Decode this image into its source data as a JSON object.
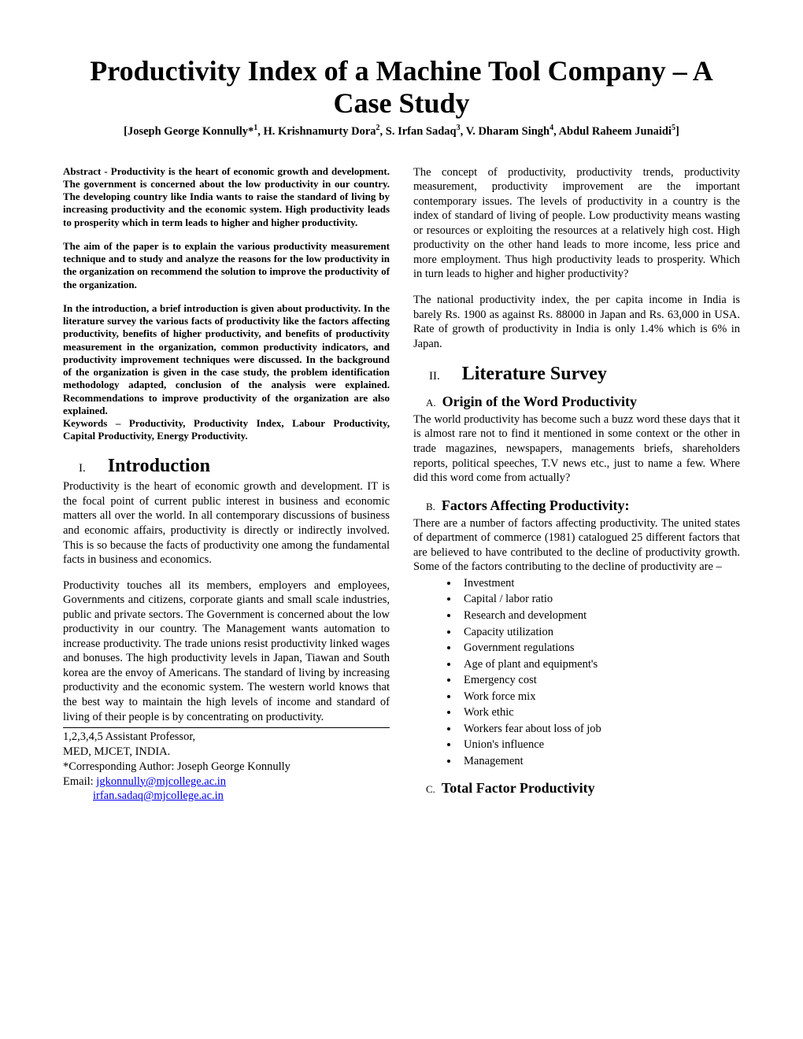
{
  "title": "Productivity Index of a Machine Tool Company – A Case Study",
  "authors_html": "[Joseph George Konnully*<sup>1</sup>, H. Krishnamurty Dora<sup>2</sup>, S. Irfan Sadaq<sup>3</sup>, V. Dharam Singh<sup>4</sup>, Abdul Raheem Junaidi<sup>5</sup>]",
  "abstract": {
    "p1": "Abstract - Productivity is the heart of economic growth and development. The government is concerned about the low productivity in our country. The developing country like India wants to raise the standard of living by increasing productivity and the economic system. High productivity leads to prosperity which in term leads to higher and higher productivity.",
    "p2": "The aim of the paper is to explain the various productivity measurement technique and to study and analyze the reasons for the low productivity in the organization on recommend the solution to improve the productivity of the organization.",
    "p3": "In the introduction, a brief introduction is given about productivity. In the literature survey the various facts of productivity like the factors affecting productivity, benefits of higher productivity, and benefits of productivity measurement in the organization, common productivity indicators, and productivity improvement techniques were discussed. In the background of the organization is given in the case study, the problem identification methodology adapted, conclusion of the analysis were explained. Recommendations to improve productivity of the organization are also explained.",
    "keywords": "Keywords – Productivity, Productivity Index, Labour Productivity, Capital Productivity, Energy Productivity."
  },
  "section1": {
    "num": "I.",
    "title": "Introduction",
    "p1": "Productivity is the heart of economic growth and development. IT is the focal point of current public interest in business and economic matters all over the world. In all contemporary discussions of business and economic affairs, productivity is directly or indirectly involved. This is so because the facts of productivity one among the fundamental facts in business and economics.",
    "p2": "Productivity touches all its members, employers and employees, Governments and citizens, corporate giants and small scale industries, public and private sectors. The Government is concerned about the low productivity in our country. The Management wants automation to increase productivity. The trade unions resist productivity linked wages and bonuses. The high productivity levels in Japan, Tiawan and South korea are the envoy of Americans. The standard of living by increasing productivity and the economic system. The western world knows that the best way to maintain the high levels of income and standard of living of their people is by concentrating on productivity."
  },
  "footnote": {
    "line1": "1,2,3,4,5 Assistant Professor,",
    "line2": "MED, MJCET, INDIA.",
    "line3": "*Corresponding Author: Joseph George Konnully",
    "email_label": "Email: ",
    "email1": "jgkonnully@mjcollege.ac.in",
    "email2": "irfan.sadaq@mjcollege.ac.in"
  },
  "col2": {
    "p1": "The concept of productivity, productivity trends, productivity measurement, productivity improvement are the important contemporary issues. The levels of productivity in a country is the index of standard of living of people. Low productivity means wasting or resources or exploiting the resources at a relatively high cost. High productivity on the other hand leads to more income, less price and more employment. Thus high productivity leads to prosperity. Which in turn leads to higher and higher productivity?",
    "p2": "The national productivity index, the per capita income in India is barely Rs. 1900 as against Rs. 88000 in Japan and Rs. 63,000 in USA. Rate of growth of productivity in India is only 1.4% which is 6% in Japan."
  },
  "section2": {
    "num": "II.",
    "title": "Literature Survey",
    "subA": {
      "letter": "A.",
      "title": "Origin of the Word Productivity",
      "p": "The world productivity has become such a buzz word  these days that it is almost rare not to find it mentioned in some context or the other in trade magazines, newspapers, managements briefs, shareholders reports, political speeches, T.V news etc., just to name a few. Where did this word come from actually?"
    },
    "subB": {
      "letter": "B.",
      "title": "Factors Affecting Productivity:",
      "p": "There are a number of factors affecting productivity. The united states of department of commerce (1981) catalogued 25 different factors that are believed to have contributed to the decline of productivity growth. Some of the factors contributing to the decline of productivity are –",
      "items": [
        "Investment",
        "Capital / labor ratio",
        "Research and development",
        "Capacity utilization",
        "Government regulations",
        "Age of plant and equipment's",
        "Emergency cost",
        "Work force mix",
        "Work ethic",
        "Workers fear about loss of job",
        "Union's influence",
        "Management"
      ]
    },
    "subC": {
      "letter": "C.",
      "title": "Total Factor Productivity"
    }
  }
}
